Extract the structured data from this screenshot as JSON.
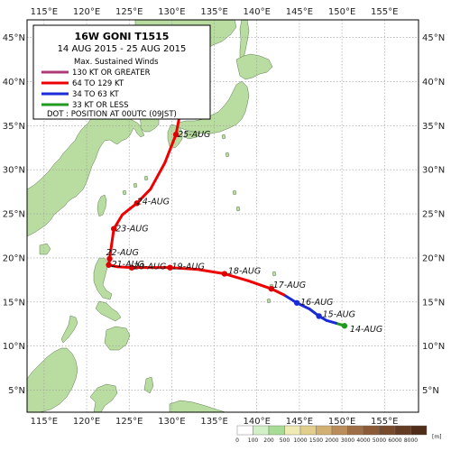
{
  "title": "16W  GONI  T1515",
  "period": "14 AUG 2015 - 25 AUG 2015",
  "legend": {
    "heading": "Max. Sustained Winds",
    "items": [
      {
        "label": "130 KT OR GREATER",
        "color": "#b03a78"
      },
      {
        "label": "64 TO 129 KT",
        "color": "#ee0000"
      },
      {
        "label": "34 TO 63 KT",
        "color": "#1a2bd6"
      },
      {
        "label": "33 KT OR LESS",
        "color": "#1f9a1f"
      }
    ],
    "dot_note": "DOT : POSITION AT 00UTC (09JST)"
  },
  "axes": {
    "lon_range": [
      113,
      159
    ],
    "lat_range": [
      2.5,
      47
    ],
    "lon_ticks": [
      "115°E",
      "120°E",
      "125°E",
      "130°E",
      "135°E",
      "140°E",
      "145°E",
      "150°E",
      "155°E"
    ],
    "lat_ticks": [
      "5°N",
      "10°N",
      "15°N",
      "20°N",
      "25°N",
      "30°N",
      "35°N",
      "40°N",
      "45°N"
    ]
  },
  "track": [
    {
      "lon": 150.3,
      "lat": 12.3,
      "cat": "td"
    },
    {
      "lon": 149.3,
      "lat": 12.6,
      "cat": "td"
    },
    {
      "lon": 148.2,
      "lat": 12.9,
      "cat": "ts"
    },
    {
      "lon": 147.3,
      "lat": 13.4,
      "cat": "ts"
    },
    {
      "lon": 146.2,
      "lat": 14.2,
      "cat": "ts"
    },
    {
      "lon": 144.7,
      "lat": 14.9,
      "cat": "ts"
    },
    {
      "lon": 143.2,
      "lat": 15.8,
      "cat": "ts"
    },
    {
      "lon": 141.7,
      "lat": 16.5,
      "cat": "ty"
    },
    {
      "lon": 139.0,
      "lat": 17.4,
      "cat": "ty"
    },
    {
      "lon": 136.2,
      "lat": 18.2,
      "cat": "ty"
    },
    {
      "lon": 133.0,
      "lat": 18.7,
      "cat": "ty"
    },
    {
      "lon": 129.8,
      "lat": 18.9,
      "cat": "ty"
    },
    {
      "lon": 127.5,
      "lat": 18.9,
      "cat": "ty"
    },
    {
      "lon": 125.3,
      "lat": 18.9,
      "cat": "ty"
    },
    {
      "lon": 123.6,
      "lat": 19.0,
      "cat": "ty"
    },
    {
      "lon": 122.6,
      "lat": 19.2,
      "cat": "ty"
    },
    {
      "lon": 122.7,
      "lat": 19.9,
      "cat": "ty"
    },
    {
      "lon": 122.9,
      "lat": 21.3,
      "cat": "ty"
    },
    {
      "lon": 123.2,
      "lat": 23.3,
      "cat": "ty"
    },
    {
      "lon": 124.2,
      "lat": 24.9,
      "cat": "ty"
    },
    {
      "lon": 125.9,
      "lat": 26.2,
      "cat": "ty"
    },
    {
      "lon": 127.5,
      "lat": 27.8,
      "cat": "ty"
    },
    {
      "lon": 129.2,
      "lat": 30.8,
      "cat": "ty"
    },
    {
      "lon": 130.5,
      "lat": 34.0,
      "cat": "ty"
    },
    {
      "lon": 131.0,
      "lat": 36.5,
      "cat": "ty"
    }
  ],
  "daily_positions": [
    {
      "label": "14-AUG",
      "lon": 150.3,
      "lat": 12.3,
      "cat": "td"
    },
    {
      "label": "15-AUG",
      "lon": 147.3,
      "lat": 13.4,
      "cat": "ts"
    },
    {
      "label": "16-AUG",
      "lon": 144.7,
      "lat": 14.9,
      "cat": "ts"
    },
    {
      "label": "17-AUG",
      "lon": 141.7,
      "lat": 16.5,
      "cat": "ty"
    },
    {
      "label": "18-AUG",
      "lon": 136.2,
      "lat": 18.2,
      "cat": "ty"
    },
    {
      "label": "19-AUG",
      "lon": 129.8,
      "lat": 18.9,
      "cat": "ty"
    },
    {
      "label": "20-AUG",
      "lon": 125.3,
      "lat": 18.9,
      "cat": "ty"
    },
    {
      "label": "21-AUG",
      "lon": 122.6,
      "lat": 19.2,
      "cat": "ty"
    },
    {
      "label": "22-AUG",
      "lon": 122.7,
      "lat": 19.9,
      "cat": "ty"
    },
    {
      "label": "23-AUG",
      "lon": 123.2,
      "lat": 23.3,
      "cat": "ty"
    },
    {
      "label": "24-AUG",
      "lon": 125.9,
      "lat": 26.2,
      "cat": "ty"
    },
    {
      "label": "25-AUG",
      "lon": 130.5,
      "lat": 34.0,
      "cat": "ty"
    }
  ],
  "elevation_scale": {
    "unit": "[m]",
    "labels": [
      "0",
      "100",
      "200",
      "500",
      "1000",
      "1500",
      "2000",
      "3000",
      "4000",
      "5000",
      "6000",
      "8000"
    ],
    "colors": [
      "#ffffff",
      "#d2f0c8",
      "#a8dc96",
      "#f0ebb4",
      "#e1cd8c",
      "#d2af73",
      "#b98c5a",
      "#a06e46",
      "#8c5a37",
      "#784b2d",
      "#643c23",
      "#502d19"
    ]
  },
  "colors": {
    "ocean": "#ffffff",
    "land": "#b9dca0",
    "grid": "#9a9a9a",
    "dot": "#dd0000"
  }
}
